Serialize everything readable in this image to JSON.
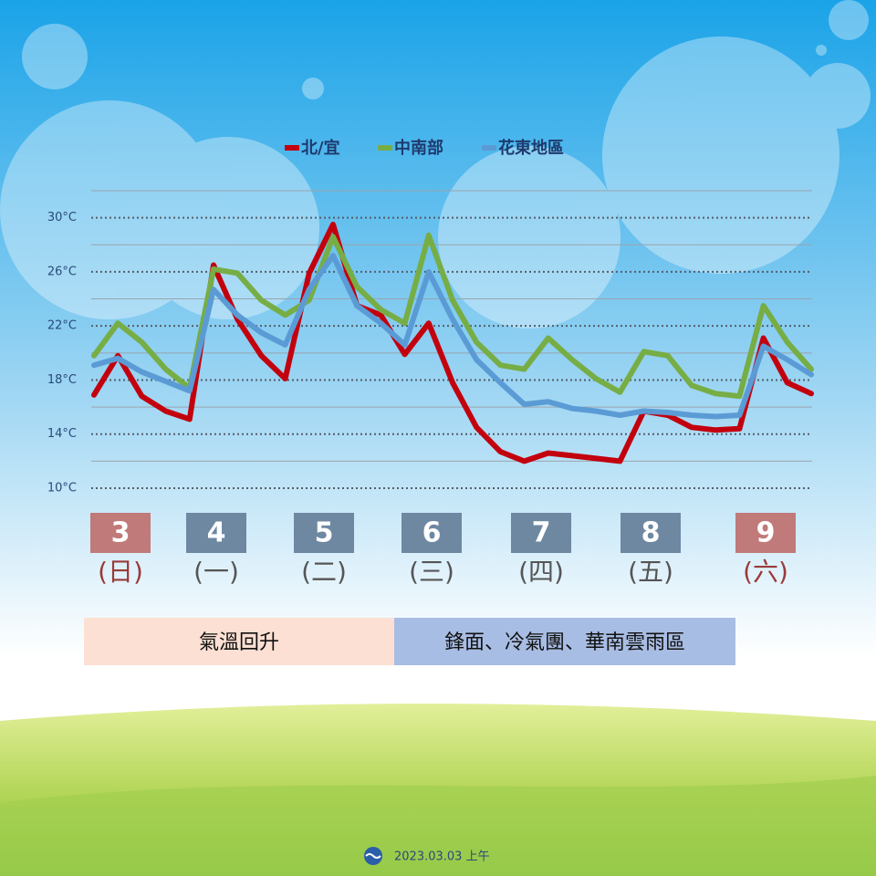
{
  "chart_data": {
    "type": "line",
    "legend": "top",
    "ylim": [
      10,
      32
    ],
    "yticks": [
      {
        "value": 10,
        "label": "10°C"
      },
      {
        "value": 14,
        "label": "14°C"
      },
      {
        "value": 18,
        "label": "18°C"
      },
      {
        "value": 22,
        "label": "22°C"
      },
      {
        "value": 26,
        "label": "26°C"
      },
      {
        "value": 30,
        "label": "30°C"
      }
    ],
    "minor_gridlines": [
      12,
      16,
      20,
      24,
      28,
      32
    ],
    "series": [
      {
        "name": "北/宜",
        "color": "#c3000d",
        "values": [
          16.9,
          19.8,
          16.8,
          15.7,
          15.1,
          26.5,
          22.5,
          19.8,
          18.1,
          25.9,
          29.5,
          23.5,
          22.8,
          19.9,
          22.2,
          17.8,
          14.5,
          12.7,
          12.0,
          12.6,
          12.4,
          12.2,
          12.0,
          15.7,
          15.4,
          14.5,
          14.3,
          14.4,
          21.1,
          17.8,
          17.0
        ]
      },
      {
        "name": "中南部",
        "color": "#77ad45",
        "values": [
          19.8,
          22.2,
          20.8,
          18.8,
          17.4,
          26.2,
          25.9,
          23.9,
          22.8,
          23.9,
          28.6,
          24.9,
          23.2,
          22.2,
          28.7,
          23.9,
          20.8,
          19.1,
          18.8,
          21.1,
          19.5,
          18.1,
          17.1,
          20.1,
          19.8,
          17.6,
          17.0,
          16.8,
          23.5,
          20.8,
          18.8
        ]
      },
      {
        "name": "花東地區",
        "color": "#5b9bd5",
        "values": [
          19.1,
          19.6,
          18.6,
          17.9,
          17.2,
          24.7,
          22.8,
          21.5,
          20.6,
          24.7,
          27.2,
          23.5,
          22.2,
          20.6,
          26.0,
          22.5,
          19.5,
          17.8,
          16.2,
          16.4,
          15.9,
          15.7,
          15.4,
          15.7,
          15.6,
          15.4,
          15.3,
          15.4,
          20.5,
          19.5,
          18.4
        ]
      }
    ],
    "days": [
      {
        "date": "3",
        "weekday": "(日)",
        "box_color": "#c07a79",
        "text_color": "#9a3a38"
      },
      {
        "date": "4",
        "weekday": "(一)",
        "box_color": "#6e88a2",
        "text_color": "#555555"
      },
      {
        "date": "5",
        "weekday": "(二)",
        "box_color": "#6e88a2",
        "text_color": "#555555"
      },
      {
        "date": "6",
        "weekday": "(三)",
        "box_color": "#6e88a2",
        "text_color": "#555555"
      },
      {
        "date": "7",
        "weekday": "(四)",
        "box_color": "#6e88a2",
        "text_color": "#555555"
      },
      {
        "date": "8",
        "weekday": "(五)",
        "box_color": "#6e88a2",
        "text_color": "#555555"
      },
      {
        "date": "9",
        "weekday": "(六)",
        "box_color": "#c07a79",
        "text_color": "#9a3a38"
      }
    ],
    "annotations": [
      {
        "text": "氣溫回升",
        "color": "#fbe0d3"
      },
      {
        "text": "鋒面、冷氣團、華南雲雨區",
        "color": "#a8bde3"
      }
    ],
    "footer": "2023.03.03 上午"
  }
}
